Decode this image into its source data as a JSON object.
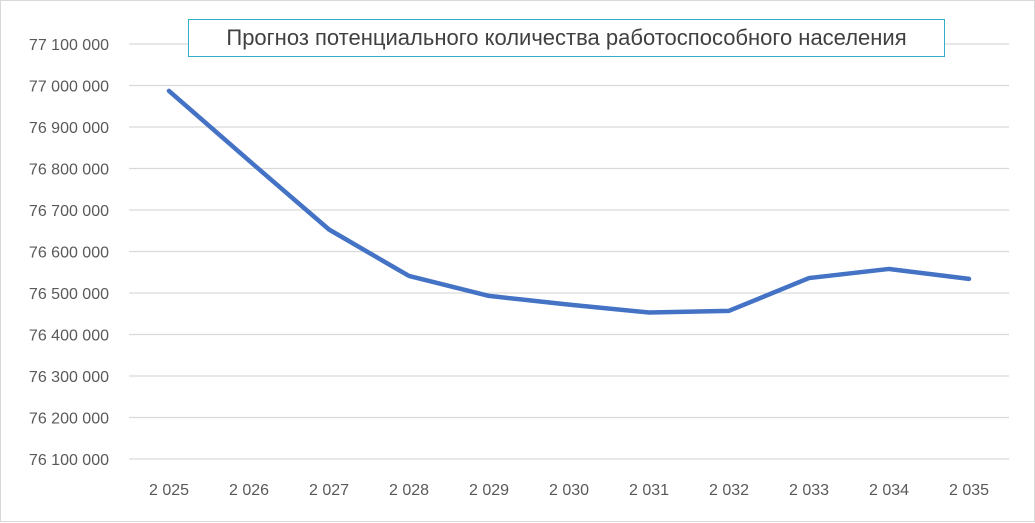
{
  "chart_data": {
    "type": "line",
    "title": "Прогноз потенциального количества работоспособного населения",
    "xlabel": "",
    "ylabel": "",
    "categories": [
      "2 025",
      "2 026",
      "2 027",
      "2 028",
      "2 029",
      "2 030",
      "2 031",
      "2 032",
      "2 033",
      "2 034",
      "2 035"
    ],
    "series": [
      {
        "values": [
          76987000,
          76819000,
          76653000,
          76541000,
          76493000,
          76472000,
          76453000,
          76457000,
          76536000,
          76558000,
          76534000
        ]
      }
    ],
    "ylim": [
      76100000,
      77100000
    ],
    "yticks": [
      76100000,
      76200000,
      76300000,
      76400000,
      76500000,
      76600000,
      76700000,
      76800000,
      76900000,
      77000000,
      77100000
    ],
    "ytick_labels": [
      "76 100 000",
      "76 200 000",
      "76 300 000",
      "76 400 000",
      "76 500 000",
      "76 600 000",
      "76 700 000",
      "76 800 000",
      "76 900 000",
      "77 000 000",
      "77 100 000"
    ],
    "grid": true,
    "legend": "none",
    "colors": {
      "line": "#4472c4",
      "grid": "#d9d9d9",
      "title_border": "#2fb0c8"
    }
  }
}
